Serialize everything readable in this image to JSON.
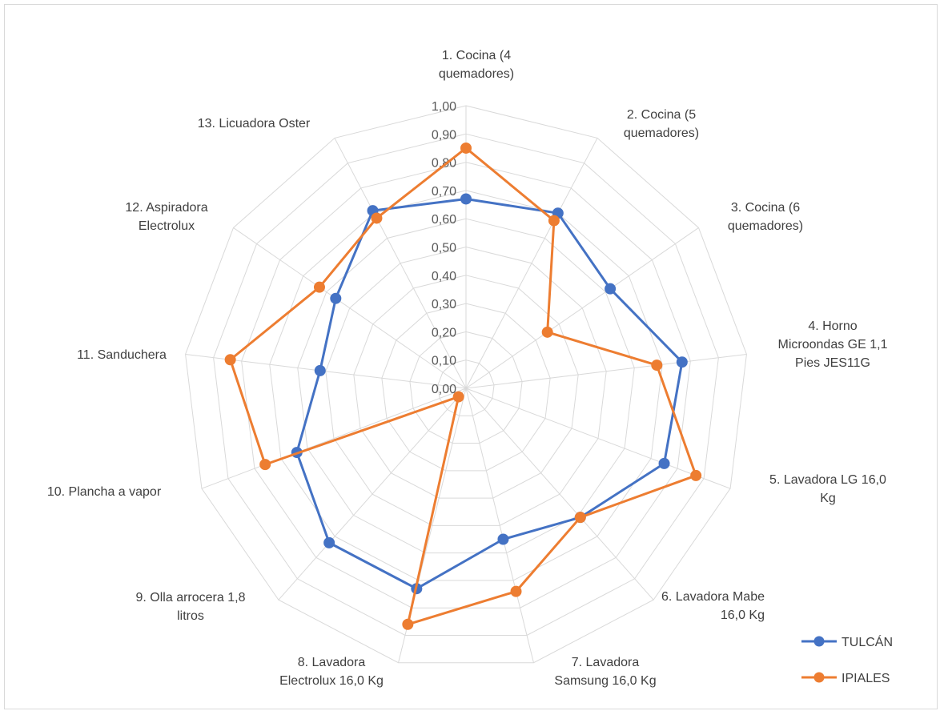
{
  "chart_data": {
    "type": "radar",
    "categories": [
      "1. Cocina (4 quemadores)",
      "2. Cocina (5 quemadores)",
      "3. Cocina (6 quemadores)",
      "4. Horno Microondas GE 1,1 Pies JES11G",
      "5. Lavadora LG 16,0 Kg",
      "6. Lavadora Mabe 16,0 Kg",
      "7. Lavadora Samsung 16,0 Kg",
      "8. Lavadora Electrolux 16,0 Kg",
      "9. Olla arrocera 1,8 litros",
      "10. Plancha a vapor",
      "11. Sanduchera",
      "12. Aspiradora Electrolux",
      "13. Licuadora Oster"
    ],
    "category_label_lines": [
      [
        "1. Cocina (4",
        "quemadores)"
      ],
      [
        "2. Cocina (5",
        "quemadores)"
      ],
      [
        "3. Cocina (6",
        "quemadores)"
      ],
      [
        "4. Horno",
        "Microondas GE 1,1",
        "Pies JES11G"
      ],
      [
        "5. Lavadora LG 16,0",
        "Kg"
      ],
      [
        "6. Lavadora Mabe",
        "16,0 Kg"
      ],
      [
        "7. Lavadora",
        "Samsung 16,0 Kg"
      ],
      [
        "8. Lavadora",
        "Electrolux 16,0 Kg"
      ],
      [
        "9. Olla arrocera 1,8",
        "litros"
      ],
      [
        "10. Plancha a vapor"
      ],
      [
        "11. Sanduchera"
      ],
      [
        "12. Aspiradora",
        "Electrolux"
      ],
      [
        "13. Licuadora Oster"
      ]
    ],
    "series": [
      {
        "name": "TULCÁN",
        "color": "#4472c4",
        "values": [
          0.67,
          0.7,
          0.62,
          0.77,
          0.75,
          0.61,
          0.55,
          0.73,
          0.73,
          0.64,
          0.52,
          0.56,
          0.71
        ]
      },
      {
        "name": "IPIALES",
        "color": "#ed7d31",
        "values": [
          0.85,
          0.67,
          0.35,
          0.68,
          0.87,
          0.61,
          0.74,
          0.86,
          0.04,
          0.76,
          0.84,
          0.63,
          0.68
        ]
      }
    ],
    "ticks": [
      "0,00",
      "0,10",
      "0,20",
      "0,30",
      "0,40",
      "0,50",
      "0,60",
      "0,70",
      "0,80",
      "0,90",
      "1,00"
    ],
    "rlim": [
      0,
      1
    ],
    "grid": true,
    "legend_position": "bottom-right",
    "grid_color": "#d9d9d9"
  }
}
